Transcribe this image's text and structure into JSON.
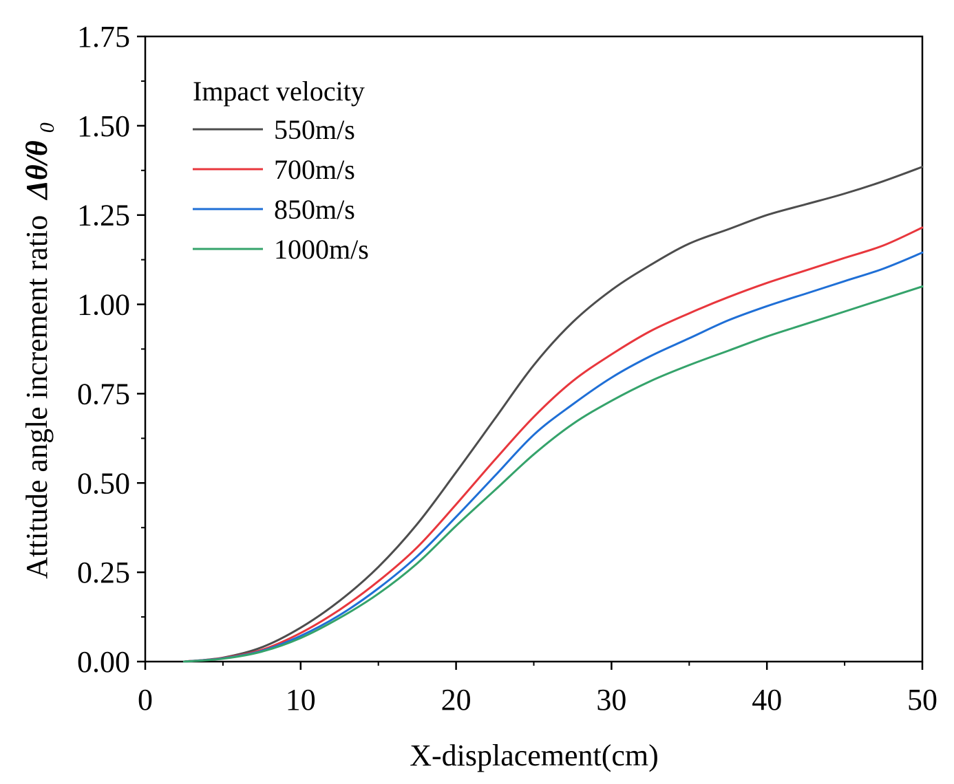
{
  "chart_data": {
    "type": "line",
    "title": "",
    "xlabel": "X-displacement(cm)",
    "ylabel_text": "Attitude angle increment ratio",
    "ylabel_symbol": "Δθ/θ",
    "ylabel_subscript": "0",
    "xlim": [
      0,
      50
    ],
    "ylim": [
      0,
      1.75
    ],
    "x_ticks": [
      0,
      10,
      20,
      30,
      40,
      50
    ],
    "x_tick_labels": [
      "0",
      "10",
      "20",
      "30",
      "40",
      "50"
    ],
    "y_ticks": [
      0,
      0.25,
      0.5,
      0.75,
      1.0,
      1.25,
      1.5,
      1.75
    ],
    "y_tick_labels": [
      "0.00",
      "0.25",
      "0.50",
      "0.75",
      "1.00",
      "1.25",
      "1.50",
      "1.75"
    ],
    "grid": false,
    "legend_title": "Impact velocity",
    "legend_position": "top-left",
    "x": [
      2.5,
      5,
      7.5,
      10,
      12.5,
      15,
      17.5,
      20,
      22.5,
      25,
      27.5,
      30,
      32.5,
      35,
      37.5,
      40,
      42.5,
      45,
      47.5,
      50
    ],
    "series": [
      {
        "name": "550m/s",
        "color": "#4d4d4d",
        "values": [
          0.0,
          0.011,
          0.04,
          0.095,
          0.17,
          0.265,
          0.385,
          0.53,
          0.68,
          0.83,
          0.95,
          1.04,
          1.11,
          1.17,
          1.21,
          1.25,
          1.28,
          1.31,
          1.345,
          1.385
        ]
      },
      {
        "name": "700m/s",
        "color": "#e8373d",
        "values": [
          0.0,
          0.01,
          0.033,
          0.08,
          0.145,
          0.225,
          0.32,
          0.44,
          0.565,
          0.685,
          0.785,
          0.86,
          0.925,
          0.975,
          1.02,
          1.06,
          1.095,
          1.13,
          1.165,
          1.215
        ]
      },
      {
        "name": "850m/s",
        "color": "#1f6fd6",
        "values": [
          0.0,
          0.009,
          0.03,
          0.072,
          0.13,
          0.205,
          0.295,
          0.405,
          0.52,
          0.635,
          0.72,
          0.795,
          0.855,
          0.905,
          0.955,
          0.995,
          1.03,
          1.065,
          1.1,
          1.145
        ]
      },
      {
        "name": "1000m/s",
        "color": "#35a36b",
        "values": [
          0.0,
          0.008,
          0.028,
          0.066,
          0.122,
          0.19,
          0.275,
          0.38,
          0.48,
          0.58,
          0.665,
          0.73,
          0.785,
          0.83,
          0.87,
          0.91,
          0.945,
          0.98,
          1.015,
          1.05
        ]
      }
    ]
  }
}
